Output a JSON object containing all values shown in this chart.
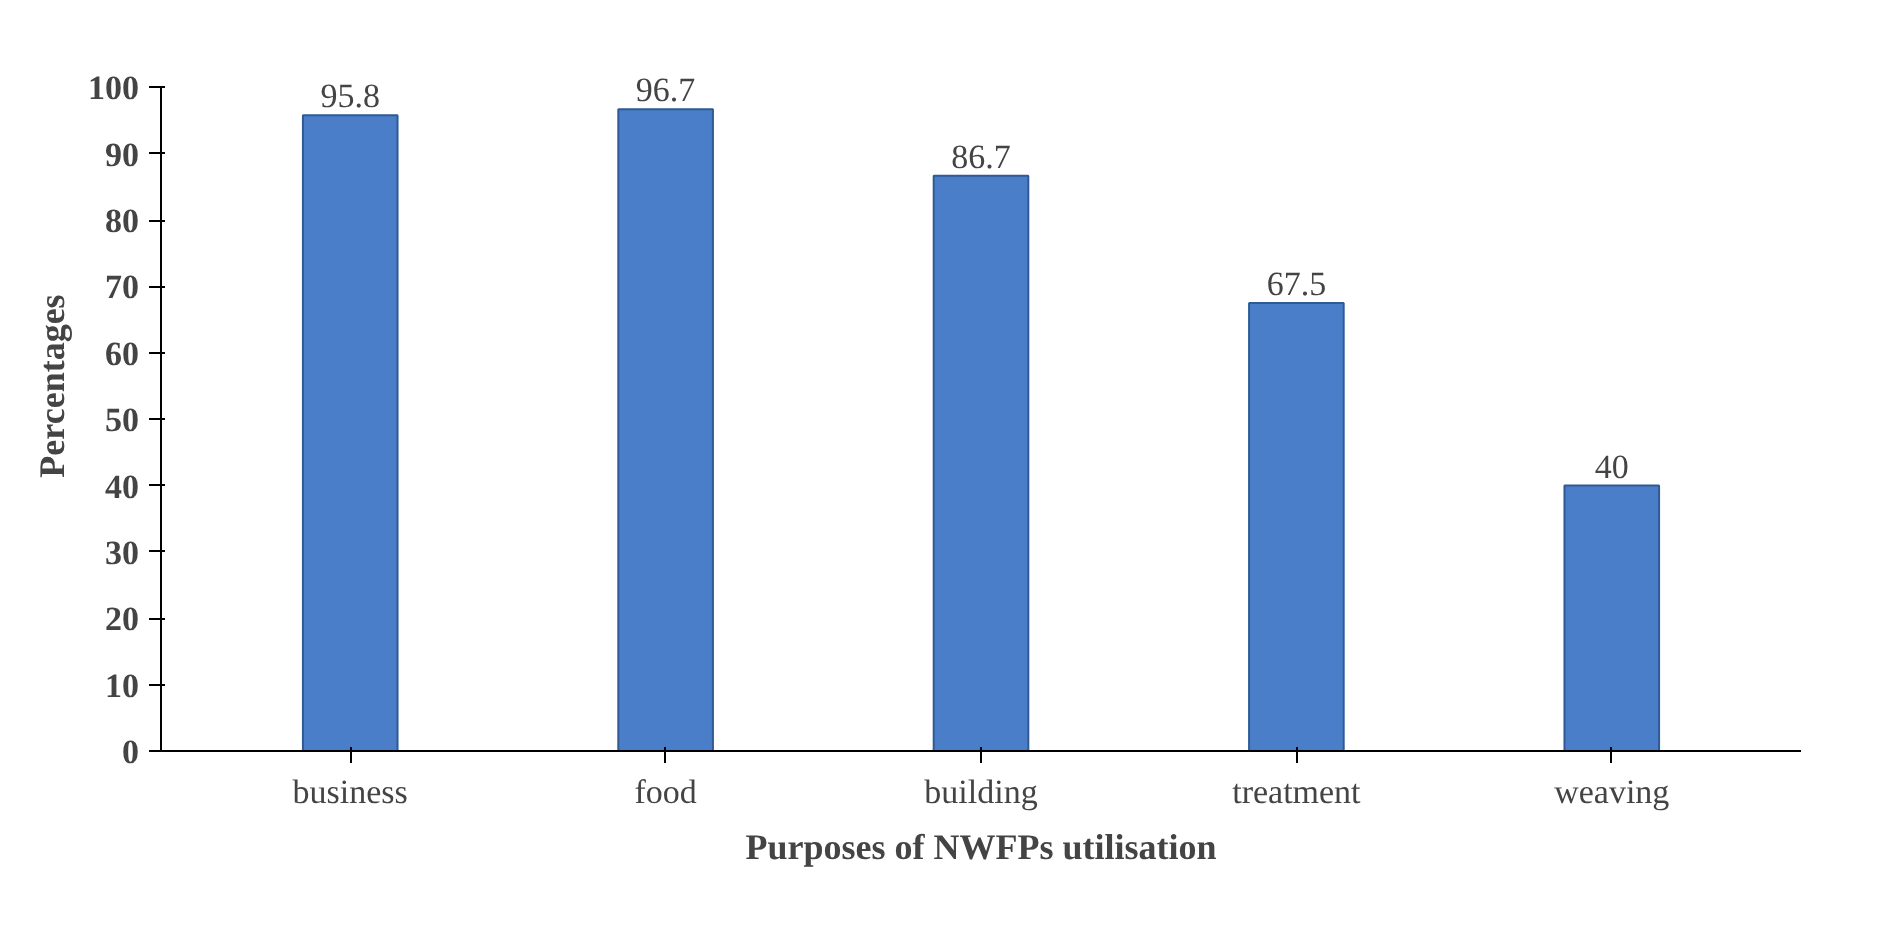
{
  "chart_data": {
    "type": "bar",
    "xlabel": "Purposes of NWFPs utilisation",
    "ylabel": "Percentages",
    "categories": [
      "business",
      "food",
      "building",
      "treatment",
      "weaving"
    ],
    "values": [
      95.8,
      96.7,
      86.7,
      67.5,
      40
    ],
    "color": "#4a7ec8",
    "ylim": [
      0,
      100
    ],
    "yticks": [
      0,
      10,
      20,
      30,
      40,
      50,
      60,
      70,
      80,
      90,
      100
    ],
    "data_labels": true,
    "grid": false
  }
}
